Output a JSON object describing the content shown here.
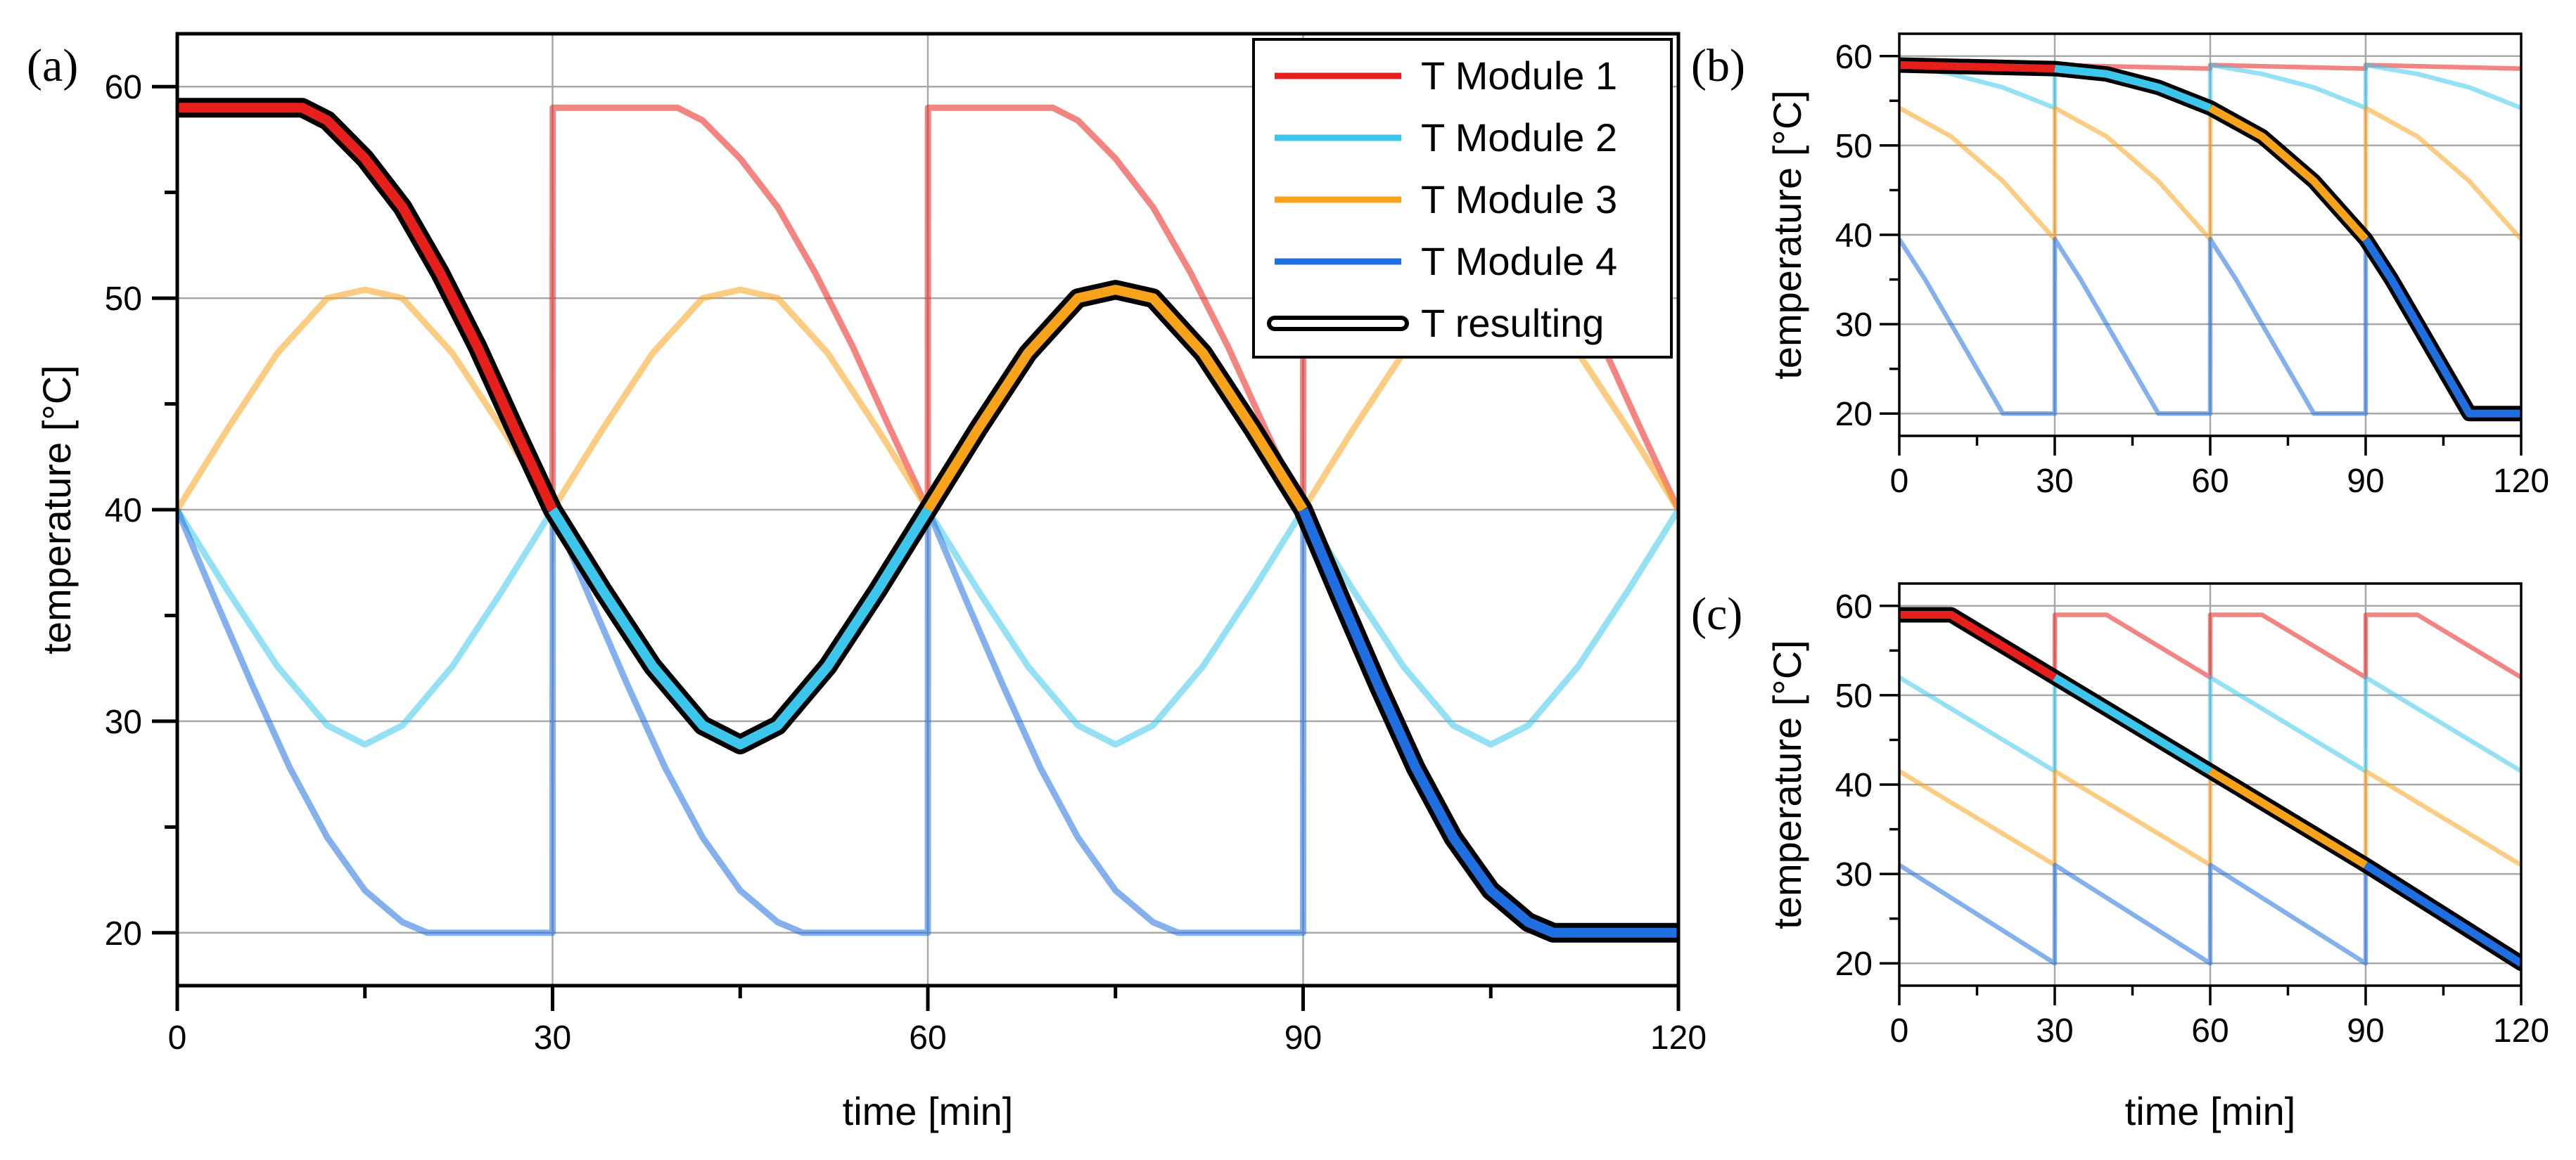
{
  "chart_data": [
    {
      "panel_label": "(a)",
      "type": "line",
      "xlabel": "time [min]",
      "ylabel": "temperature [°C]",
      "xlim": [
        0,
        120
      ],
      "ylim": [
        17.5,
        62.5
      ],
      "xticks": [
        0,
        30,
        60,
        90,
        120
      ],
      "yticks": [
        20,
        30,
        40,
        50,
        60
      ],
      "grid": true,
      "legend": {
        "position": "top-right",
        "entries": [
          {
            "label": "T Module 1",
            "color": "#e8201c"
          },
          {
            "label": "T Module 2",
            "color": "#3cc6ec"
          },
          {
            "label": "T Module 3",
            "color": "#f7a21b"
          },
          {
            "label": "T Module 4",
            "color": "#1f6fe0"
          },
          {
            "label": "T resulting",
            "color": "#ffffff",
            "outline": "#000000"
          }
        ]
      },
      "series": [
        {
          "name": "T Module 1",
          "color": "#e8201c",
          "x": [
            0,
            10,
            12,
            15,
            18,
            21,
            24,
            27,
            30,
            30.01,
            40,
            42,
            45,
            48,
            51,
            54,
            57,
            60,
            60.01,
            70,
            72,
            75,
            78,
            81,
            84,
            87,
            90,
            90.01,
            100,
            102,
            105,
            108,
            111,
            114,
            117,
            120
          ],
          "values": [
            59,
            59,
            58.4,
            56.6,
            54.3,
            51.2,
            47.7,
            43.8,
            40,
            59,
            59,
            58.4,
            56.6,
            54.3,
            51.2,
            47.7,
            43.8,
            40,
            59,
            59,
            58.4,
            56.6,
            54.3,
            51.2,
            47.7,
            43.8,
            40,
            59,
            59,
            58.4,
            56.6,
            54.3,
            51.2,
            47.7,
            43.8,
            40
          ]
        },
        {
          "name": "T Module 2",
          "color": "#3cc6ec",
          "x": [
            0,
            4,
            8,
            12,
            15,
            18,
            22,
            26,
            30,
            34,
            38,
            42,
            45,
            48,
            52,
            56,
            60,
            64,
            68,
            72,
            75,
            78,
            82,
            86,
            90,
            94,
            98,
            102,
            105,
            108,
            112,
            116,
            120
          ],
          "values": [
            40,
            36.2,
            32.6,
            29.8,
            28.9,
            29.8,
            32.6,
            36.2,
            40,
            36.2,
            32.6,
            29.8,
            28.9,
            29.8,
            32.6,
            36.2,
            40,
            36.2,
            32.6,
            29.8,
            28.9,
            29.8,
            32.6,
            36.2,
            40,
            36.2,
            32.6,
            29.8,
            28.9,
            29.8,
            32.6,
            36.2,
            40
          ]
        },
        {
          "name": "T Module 3",
          "color": "#f7a21b",
          "x": [
            0,
            4,
            8,
            12,
            15,
            18,
            22,
            26,
            30,
            34,
            38,
            42,
            45,
            48,
            52,
            56,
            60,
            64,
            68,
            72,
            75,
            78,
            82,
            86,
            90,
            94,
            98,
            102,
            105,
            108,
            112,
            116,
            120
          ],
          "values": [
            40,
            43.8,
            47.4,
            50.0,
            50.4,
            50.0,
            47.4,
            43.8,
            40,
            43.8,
            47.4,
            50.0,
            50.4,
            50.0,
            47.4,
            43.8,
            40,
            43.8,
            47.4,
            50.0,
            50.4,
            50.0,
            47.4,
            43.8,
            40,
            43.8,
            47.4,
            50.0,
            50.4,
            50.0,
            47.4,
            43.8,
            40
          ]
        },
        {
          "name": "T Module 4",
          "color": "#1f6fe0",
          "x": [
            0,
            3,
            6,
            9,
            12,
            15,
            18,
            20,
            30,
            30.01,
            33,
            36,
            39,
            42,
            45,
            48,
            50,
            60,
            60.01,
            63,
            66,
            69,
            72,
            75,
            78,
            80,
            90,
            90.01,
            93,
            96,
            99,
            102,
            105,
            108,
            110,
            120
          ],
          "values": [
            40,
            35.8,
            31.7,
            27.8,
            24.5,
            22.0,
            20.5,
            20,
            20,
            40,
            35.8,
            31.7,
            27.8,
            24.5,
            22.0,
            20.5,
            20,
            20,
            40,
            35.8,
            31.7,
            27.8,
            24.5,
            22.0,
            20.5,
            20,
            20,
            40,
            35.8,
            31.7,
            27.8,
            24.5,
            22.0,
            20.5,
            20,
            20
          ]
        },
        {
          "name": "T resulting",
          "color": "#000000",
          "x": [
            0,
            10,
            12,
            15,
            18,
            21,
            24,
            27,
            30,
            34,
            38,
            42,
            45,
            48,
            52,
            56,
            60,
            64,
            68,
            72,
            75,
            78,
            82,
            86,
            90,
            93,
            96,
            99,
            102,
            105,
            108,
            110,
            120
          ],
          "values": [
            59,
            59,
            58.4,
            56.6,
            54.3,
            51.2,
            47.7,
            43.8,
            40,
            36.2,
            32.6,
            29.8,
            28.9,
            29.8,
            32.6,
            36.2,
            40,
            43.8,
            47.4,
            50.0,
            50.4,
            50.0,
            47.4,
            43.8,
            40,
            35.8,
            31.7,
            27.8,
            24.5,
            22.0,
            20.5,
            20,
            20
          ],
          "segment_colors": [
            {
              "from": 0,
              "to": 30,
              "color": "#e8201c"
            },
            {
              "from": 30,
              "to": 60,
              "color": "#3cc6ec"
            },
            {
              "from": 60,
              "to": 90,
              "color": "#f7a21b"
            },
            {
              "from": 90,
              "to": 120,
              "color": "#1f6fe0"
            }
          ]
        }
      ]
    },
    {
      "panel_label": "(b)",
      "type": "line",
      "xlabel": "",
      "ylabel": "temperature [°C]",
      "xlim": [
        0,
        120
      ],
      "ylim": [
        17.5,
        62.5
      ],
      "xticks": [
        0,
        30,
        60,
        90,
        120
      ],
      "yticks": [
        20,
        30,
        40,
        50,
        60
      ],
      "grid": true,
      "series": [
        {
          "name": "T Module 1",
          "color": "#e8201c",
          "x": [
            0,
            30,
            30.01,
            60,
            60.01,
            90,
            90.01,
            120
          ],
          "values": [
            59,
            58.6,
            59,
            58.6,
            59,
            58.6,
            59,
            58.6
          ]
        },
        {
          "name": "T Module 2",
          "color": "#3cc6ec",
          "x": [
            0,
            10,
            20,
            30,
            30.01,
            40,
            50,
            60,
            60.01,
            70,
            80,
            90,
            90.01,
            100,
            110,
            120
          ],
          "values": [
            59,
            58.0,
            56.5,
            54.2,
            59,
            58.0,
            56.5,
            54.2,
            59,
            58.0,
            56.5,
            54.2,
            59,
            58.0,
            56.5,
            54.2
          ]
        },
        {
          "name": "T Module 3",
          "color": "#f7a21b",
          "x": [
            0,
            10,
            20,
            30,
            30.01,
            40,
            50,
            60,
            60.01,
            70,
            80,
            90,
            90.01,
            100,
            110,
            120
          ],
          "values": [
            54.2,
            51.0,
            46.0,
            39.5,
            54.2,
            51.0,
            46.0,
            39.5,
            54.2,
            51.0,
            46.0,
            39.5,
            54.2,
            51.0,
            46.0,
            39.5
          ]
        },
        {
          "name": "T Module 4",
          "color": "#1f6fe0",
          "x": [
            0,
            5,
            10,
            15,
            20,
            30,
            30.01,
            35,
            40,
            45,
            50,
            60,
            60.01,
            65,
            70,
            75,
            80,
            90,
            90.01,
            95,
            100,
            105,
            110,
            120
          ],
          "values": [
            39.5,
            35.0,
            30.0,
            25.0,
            20,
            20,
            39.5,
            35.0,
            30.0,
            25.0,
            20,
            20,
            39.5,
            35.0,
            30.0,
            25.0,
            20,
            20,
            39.5,
            35.0,
            30.0,
            25.0,
            20,
            20
          ]
        },
        {
          "name": "T resulting",
          "color": "#000000",
          "x": [
            0,
            30,
            40,
            50,
            60,
            70,
            80,
            90,
            95,
            100,
            105,
            110,
            120
          ],
          "values": [
            59,
            58.6,
            58.0,
            56.5,
            54.2,
            51.0,
            46.0,
            39.5,
            35.0,
            30.0,
            25.0,
            20,
            20
          ],
          "segment_colors": [
            {
              "from": 0,
              "to": 30,
              "color": "#e8201c"
            },
            {
              "from": 30,
              "to": 60,
              "color": "#3cc6ec"
            },
            {
              "from": 60,
              "to": 90,
              "color": "#f7a21b"
            },
            {
              "from": 90,
              "to": 120,
              "color": "#1f6fe0"
            }
          ]
        }
      ]
    },
    {
      "panel_label": "(c)",
      "type": "line",
      "xlabel": "time [min]",
      "ylabel": "temperature [°C]",
      "xlim": [
        0,
        120
      ],
      "ylim": [
        17.5,
        62.5
      ],
      "xticks": [
        0,
        30,
        60,
        90,
        120
      ],
      "yticks": [
        20,
        30,
        40,
        50,
        60
      ],
      "grid": true,
      "series": [
        {
          "name": "T Module 1",
          "color": "#e8201c",
          "x": [
            0,
            10,
            30,
            30.01,
            40,
            60,
            60.01,
            70,
            90,
            90.01,
            100,
            120
          ],
          "values": [
            59,
            59,
            52,
            59,
            59,
            52,
            59,
            59,
            52,
            59,
            59,
            52
          ]
        },
        {
          "name": "T Module 2",
          "color": "#3cc6ec",
          "x": [
            0,
            30,
            30.01,
            60,
            60.01,
            90,
            90.01,
            120
          ],
          "values": [
            52,
            41.5,
            52,
            41.5,
            52,
            41.5,
            52,
            41.5
          ]
        },
        {
          "name": "T Module 3",
          "color": "#f7a21b",
          "x": [
            0,
            30,
            30.01,
            60,
            60.01,
            90,
            90.01,
            120
          ],
          "values": [
            41.5,
            31,
            41.5,
            31,
            41.5,
            31,
            41.5,
            31
          ]
        },
        {
          "name": "T Module 4",
          "color": "#1f6fe0",
          "x": [
            0,
            30,
            30.01,
            60,
            60.01,
            90,
            90.01,
            120
          ],
          "values": [
            31,
            20,
            31,
            20,
            31,
            20,
            31,
            20
          ]
        },
        {
          "name": "T resulting",
          "color": "#000000",
          "x": [
            0,
            10,
            30,
            60,
            90,
            120
          ],
          "values": [
            59,
            59,
            52,
            41.5,
            31,
            20
          ],
          "segment_colors": [
            {
              "from": 0,
              "to": 30,
              "color": "#e8201c"
            },
            {
              "from": 30,
              "to": 60,
              "color": "#3cc6ec"
            },
            {
              "from": 60,
              "to": 90,
              "color": "#f7a21b"
            },
            {
              "from": 90,
              "to": 120,
              "color": "#1f6fe0"
            }
          ]
        }
      ]
    }
  ]
}
